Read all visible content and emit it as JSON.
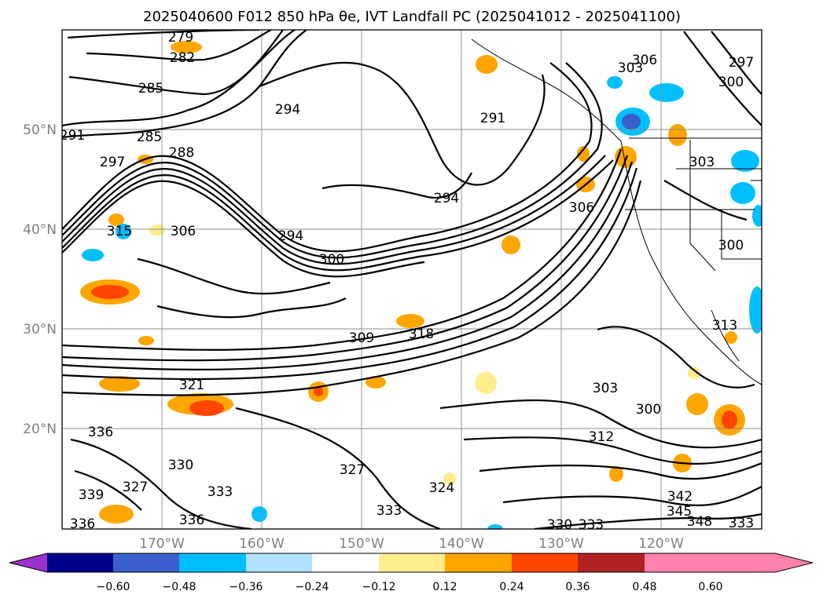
{
  "title": "2025040600 F012 850 hPa θe, IVT Landfall PC (2025041012 - 2025041100)",
  "map": {
    "lat_labels": [
      "50°N",
      "40°N",
      "30°N",
      "20°N"
    ],
    "lon_labels": [
      "170°W",
      "160°W",
      "150°W",
      "140°W",
      "130°W",
      "120°W"
    ],
    "theta_e_contour_labels": [
      "279",
      "282",
      "285",
      "291",
      "285",
      "288",
      "297",
      "294",
      "291",
      "294",
      "306",
      "303",
      "297",
      "300",
      "306",
      "315",
      "306",
      "294",
      "300",
      "300",
      "309",
      "318",
      "303",
      "321",
      "300",
      "312",
      "336",
      "330",
      "327",
      "336",
      "333",
      "327",
      "324",
      "333",
      "339",
      "342",
      "345",
      "348",
      "333",
      "330",
      "333",
      "336",
      "313",
      "303"
    ]
  },
  "colorbar": {
    "ticks": [
      "−0.60",
      "−0.48",
      "−0.36",
      "−0.24",
      "−0.12",
      "0.12",
      "0.24",
      "0.36",
      "0.48",
      "0.60"
    ],
    "colors": [
      "#9932cc",
      "#00008b",
      "#3a5fcd",
      "#00bfff",
      "#b0e2ff",
      "#ffffff",
      "#ffec8b",
      "#ffa500",
      "#ff4500",
      "#b22222",
      "#ff82ab"
    ]
  }
}
